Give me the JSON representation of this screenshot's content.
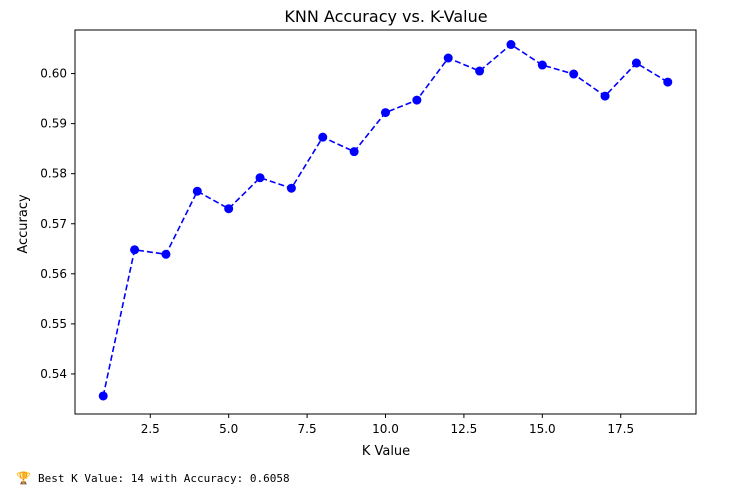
{
  "chart_data": {
    "type": "line",
    "title": "KNN Accuracy vs. K-Value",
    "xlabel": "K Value",
    "ylabel": "Accuracy",
    "xlim": [
      0.1,
      19.9
    ],
    "ylim": [
      0.532,
      0.6087
    ],
    "x_ticks": [
      2.5,
      5.0,
      7.5,
      10.0,
      12.5,
      15.0,
      17.5
    ],
    "x_tick_labels": [
      "2.5",
      "5.0",
      "7.5",
      "10.0",
      "12.5",
      "15.0",
      "17.5"
    ],
    "y_ticks": [
      0.54,
      0.55,
      0.56,
      0.57,
      0.58,
      0.59,
      0.6
    ],
    "y_tick_labels": [
      "0.54",
      "0.55",
      "0.56",
      "0.57",
      "0.58",
      "0.59",
      "0.60"
    ],
    "grid": false,
    "series": [
      {
        "color": "#0000ff",
        "line_style": "dashed",
        "marker": "circle",
        "x": [
          1,
          2,
          3,
          4,
          5,
          6,
          7,
          8,
          9,
          10,
          11,
          12,
          13,
          14,
          15,
          16,
          17,
          18,
          19
        ],
        "y": [
          0.5356,
          0.5648,
          0.5639,
          0.5765,
          0.573,
          0.5792,
          0.5771,
          0.5873,
          0.5844,
          0.5922,
          0.5947,
          0.6031,
          0.6005,
          0.6058,
          0.6017,
          0.5999,
          0.5955,
          0.6021,
          0.5983
        ]
      }
    ]
  },
  "result": {
    "icon": "trophy-icon",
    "text": "Best K Value: 14 with Accuracy: 0.6058"
  }
}
